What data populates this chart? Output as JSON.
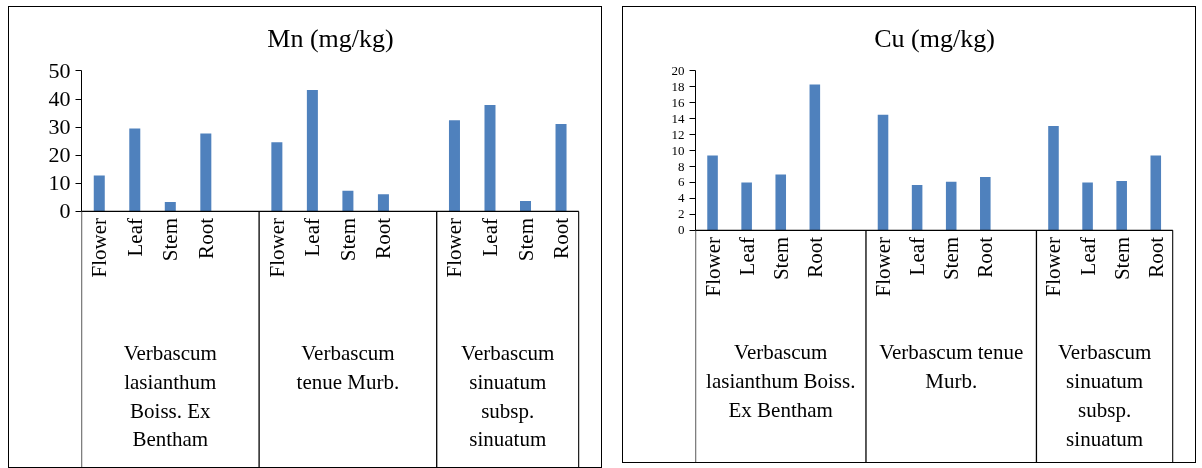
{
  "chart_data": [
    {
      "type": "bar",
      "title": "Mn (mg/kg)",
      "categories": [
        "Flower",
        "Leaf",
        "Stem",
        "Root",
        null,
        "Flower",
        "Leaf",
        "Stem",
        "Root",
        null,
        "Flower",
        "Leaf",
        "Stem",
        "Root"
      ],
      "series": [
        {
          "color": "#4f81bd",
          "values": [
            12.8,
            29.5,
            3.4,
            27.7,
            null,
            24.6,
            43.2,
            7.4,
            6.1,
            null,
            32.4,
            37.9,
            3.7,
            31.1
          ]
        }
      ],
      "ylim": [
        0,
        50
      ],
      "yticks": [
        0,
        10,
        20,
        30,
        40,
        50
      ],
      "annotations": [
        "Verbascum lasianthum Boiss. Ex Bentham",
        "Verbascum tenue Murb.",
        "Verbascum sinuatum subsp. sinuatum"
      ]
    },
    {
      "type": "bar",
      "title": "Cu (mg/kg)",
      "categories": [
        "Flower",
        "Leaf",
        "Stem",
        "Root",
        null,
        "Flower",
        "Leaf",
        "Stem",
        "Root",
        null,
        "Flower",
        "Leaf",
        "Stem",
        "Root"
      ],
      "series": [
        {
          "color": "#4f81bd",
          "values": [
            9.4,
            6.0,
            7.0,
            18.3,
            null,
            14.5,
            5.7,
            6.1,
            6.7,
            null,
            13.1,
            6.0,
            6.2,
            9.4
          ]
        }
      ],
      "ylim": [
        0,
        20
      ],
      "yticks": [
        0,
        2,
        4,
        6,
        8,
        10,
        12,
        14,
        16,
        18,
        20
      ],
      "annotations": [
        "Verbascum lasianthum Boiss. Ex Bentham",
        "Verbascum tenue Murb.",
        "Verbascum sinuatum subsp. sinuatum"
      ]
    }
  ]
}
